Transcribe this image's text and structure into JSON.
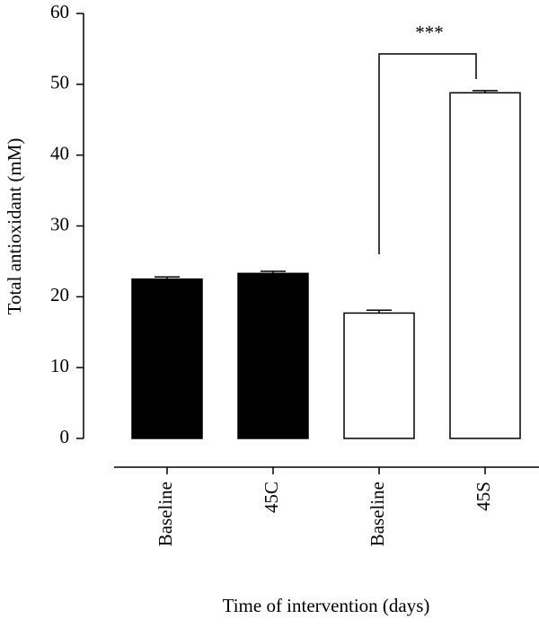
{
  "chart_data": {
    "type": "bar",
    "y_label": "Total antioxidant (mM)",
    "x_label": "Time of intervention (days)",
    "categories": [
      "Baseline",
      "45C",
      "Baseline",
      "45S"
    ],
    "values": [
      22.5,
      23.3,
      17.7,
      48.8
    ],
    "errors": [
      0.3,
      0.3,
      0.4,
      0.3
    ],
    "colors": [
      "#000000",
      "#000000",
      "#ffffff",
      "#ffffff"
    ],
    "annotation": "***",
    "ylim": [
      0,
      60
    ],
    "yticks": [
      0,
      10,
      20,
      30,
      40,
      50,
      60
    ]
  }
}
